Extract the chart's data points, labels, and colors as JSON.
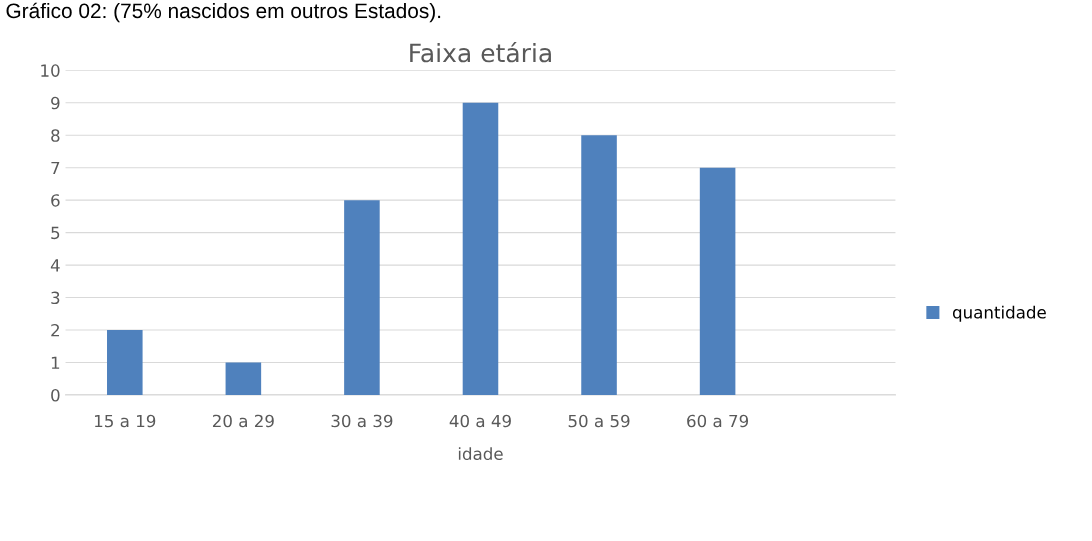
{
  "chart_data": {
    "type": "bar",
    "title": "Faixa etária",
    "xlabel": "idade",
    "annotations": [
      "Gráfico 02: (75% nascidos em outros Estados)."
    ],
    "categories": [
      "15 a 19",
      "20 a 29",
      "30 a 39",
      "40 a 49",
      "50 a 59",
      "60 a 79",
      null
    ],
    "series": [
      {
        "name": "quantidade",
        "color": "#4f81bd",
        "values": [
          2,
          1,
          6,
          9,
          8,
          7,
          null
        ]
      }
    ],
    "ylim": [
      0,
      10
    ],
    "yticks": [
      0,
      1,
      2,
      3,
      4,
      5,
      6,
      7,
      8,
      9,
      10
    ],
    "grid": "y",
    "legend": "right"
  }
}
